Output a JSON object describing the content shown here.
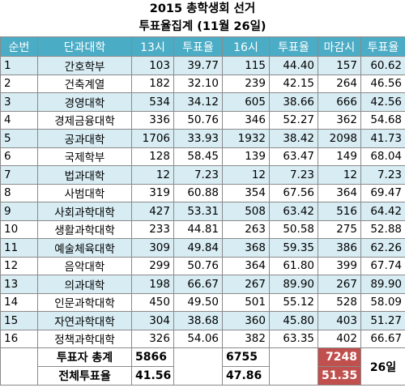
{
  "title": "2015 총학생회 선거",
  "subtitle": "투표율집계 (11월 26일)",
  "headers": [
    "순번",
    "단과대학",
    "13시",
    "투표율",
    "16시",
    "투표율",
    "마감시",
    "투표율"
  ],
  "rows": [
    [
      "1",
      "간호학부",
      "103",
      "39.77",
      "115",
      "44.40",
      "157",
      "60.62"
    ],
    [
      "2",
      "건축계열",
      "182",
      "32.10",
      "239",
      "42.15",
      "264",
      "46.56"
    ],
    [
      "3",
      "경영대학",
      "534",
      "34.12",
      "605",
      "38.66",
      "666",
      "42.56"
    ],
    [
      "4",
      "경제금융대학",
      "336",
      "50.76",
      "346",
      "52.27",
      "362",
      "54.68"
    ],
    [
      "5",
      "공과대학",
      "1706",
      "33.93",
      "1932",
      "38.42",
      "2098",
      "41.73"
    ],
    [
      "6",
      "국제학부",
      "128",
      "58.45",
      "139",
      "63.47",
      "149",
      "68.04"
    ],
    [
      "7",
      "법과대학",
      "12",
      "7.23",
      "12",
      "7.23",
      "12",
      "7.23"
    ],
    [
      "8",
      "사범대학",
      "319",
      "60.88",
      "354",
      "67.56",
      "364",
      "69.47"
    ],
    [
      "9",
      "사회과학대학",
      "427",
      "53.31",
      "508",
      "63.42",
      "516",
      "64.42"
    ],
    [
      "10",
      "생활과학대학",
      "233",
      "44.81",
      "263",
      "50.58",
      "275",
      "52.88"
    ],
    [
      "11",
      "예술체육대학",
      "309",
      "49.84",
      "368",
      "59.35",
      "386",
      "62.26"
    ],
    [
      "12",
      "음악대학",
      "299",
      "50.76",
      "364",
      "61.80",
      "399",
      "67.74"
    ],
    [
      "13",
      "의과대학",
      "198",
      "66.67",
      "267",
      "89.90",
      "267",
      "89.90"
    ],
    [
      "14",
      "인문과학대학",
      "450",
      "49.50",
      "501",
      "55.12",
      "528",
      "58.09"
    ],
    [
      "15",
      "자연과학대학",
      "304",
      "38.68",
      "360",
      "45.80",
      "403",
      "51.27"
    ],
    [
      "16",
      "정책과학대학",
      "326",
      "54.06",
      "382",
      "63.35",
      "402",
      "66.67"
    ]
  ],
  "summary": {
    "voters_label": "투표자 총계",
    "turnout_label": "전체투표율",
    "voters_13": "5866",
    "turnout_13": "41.56",
    "voters_16": "6755",
    "turnout_16": "47.86",
    "voters_close": "7248",
    "turnout_close": "51.35",
    "date_label": "26일"
  },
  "colors": {
    "header_bg": "#4bacc6",
    "band_bg": "#d7ecf3",
    "highlight_bg": "#c0504d"
  }
}
